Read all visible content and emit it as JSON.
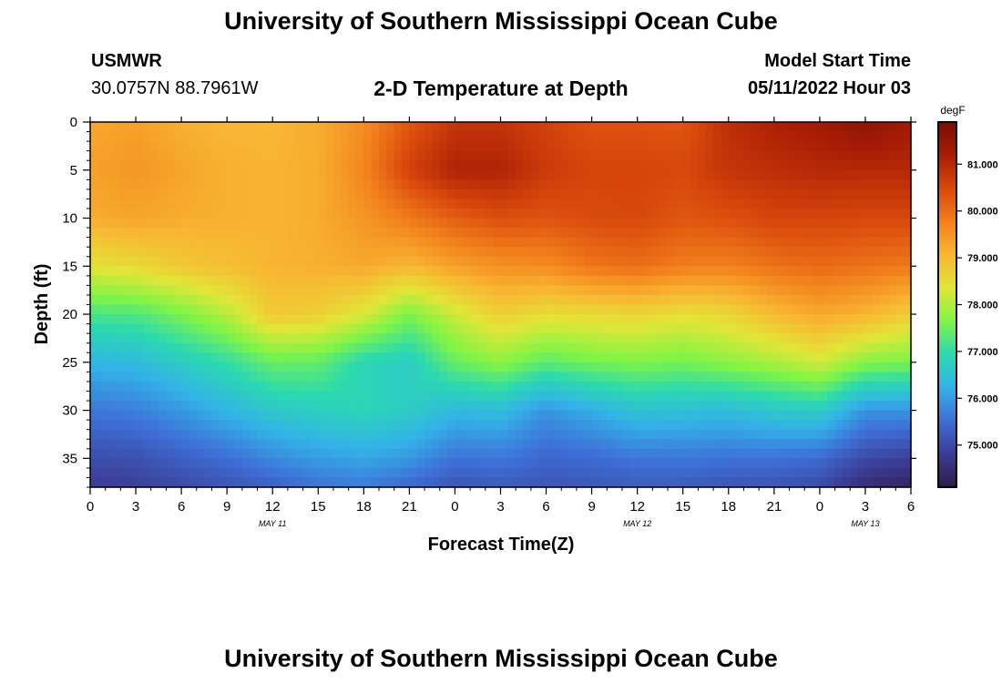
{
  "page": {
    "title_top": "University of Southern Mississippi Ocean Cube",
    "title_bottom": "University of Southern Mississippi Ocean Cube"
  },
  "station": {
    "name": "USMWR",
    "coords": "30.0757N  88.7961W"
  },
  "model": {
    "label": "Model Start Time",
    "start": "05/11/2022 Hour 03"
  },
  "chart_data": {
    "type": "heatmap",
    "title": "2-D Temperature at Depth",
    "xlabel": "Forecast Time(Z)",
    "ylabel": "Depth (ft)",
    "units": "degF",
    "xlim": [
      0,
      54
    ],
    "ylim": [
      0,
      38
    ],
    "x_ticks": [
      0,
      3,
      6,
      9,
      12,
      15,
      18,
      21,
      24,
      27,
      30,
      33,
      36,
      39,
      42,
      45,
      48,
      51,
      54
    ],
    "x_tick_labels": [
      "0",
      "3",
      "6",
      "9",
      "12",
      "15",
      "18",
      "21",
      "0",
      "3",
      "6",
      "9",
      "12",
      "15",
      "18",
      "21",
      "0",
      "3",
      "6"
    ],
    "y_ticks": [
      0,
      5,
      10,
      15,
      20,
      25,
      30,
      35
    ],
    "y_tick_labels": [
      "0",
      "5",
      "10",
      "15",
      "20",
      "25",
      "30",
      "35"
    ],
    "date_labels": [
      {
        "x": 12,
        "label": "MAY 11"
      },
      {
        "x": 36,
        "label": "MAY 12"
      },
      {
        "x": 51,
        "label": "MAY 13"
      }
    ],
    "colorbar": {
      "range": [
        74.1,
        81.9
      ],
      "ticks": [
        75,
        76,
        77,
        78,
        79,
        80,
        81
      ],
      "tick_labels": [
        "75.000",
        "76.000",
        "77.000",
        "78.000",
        "79.000",
        "80.000",
        "81.000"
      ],
      "palette": [
        "#2f1b48",
        "#3b3c94",
        "#3e6fd6",
        "#33b2e8",
        "#2bd9b0",
        "#7ff546",
        "#e1e637",
        "#f8b732",
        "#f2801c",
        "#d9480c",
        "#a91d05",
        "#7a0d03"
      ]
    },
    "time_keys": [
      0,
      3,
      6,
      9,
      12,
      15,
      18,
      21,
      24,
      27,
      30,
      33,
      36,
      39,
      42,
      45,
      48,
      51,
      54
    ],
    "depth_keys": [
      0,
      5,
      10,
      15,
      20,
      25,
      30,
      35,
      38
    ],
    "temperature_grid": [
      [
        79.25,
        79.35,
        79.2,
        78.4,
        77.2,
        76.3,
        75.6,
        75.05,
        74.8
      ],
      [
        79.35,
        79.5,
        79.3,
        78.55,
        77.25,
        76.35,
        75.7,
        75.1,
        74.85
      ],
      [
        79.15,
        79.3,
        79.2,
        78.8,
        77.6,
        76.7,
        75.95,
        75.3,
        75.0
      ],
      [
        79.05,
        79.15,
        79.15,
        78.95,
        78.05,
        77.0,
        76.3,
        75.5,
        75.15
      ],
      [
        79.05,
        79.1,
        79.1,
        79.1,
        78.8,
        77.45,
        76.6,
        75.8,
        75.3
      ],
      [
        79.2,
        79.2,
        79.2,
        79.15,
        78.7,
        77.4,
        76.75,
        76.0,
        75.55
      ],
      [
        79.6,
        79.7,
        79.5,
        79.25,
        78.3,
        76.85,
        76.85,
        76.1,
        75.65
      ],
      [
        80.3,
        80.6,
        79.85,
        79.05,
        77.6,
        76.7,
        76.7,
        75.95,
        75.4
      ],
      [
        80.8,
        81.1,
        80.2,
        79.35,
        78.2,
        77.45,
        76.35,
        75.55,
        75.15
      ],
      [
        80.8,
        81.1,
        80.4,
        79.55,
        78.7,
        77.75,
        76.4,
        75.6,
        75.25
      ],
      [
        80.6,
        80.7,
        80.35,
        79.6,
        78.5,
        77.35,
        75.9,
        75.4,
        75.15
      ],
      [
        80.35,
        80.55,
        80.45,
        79.9,
        78.55,
        77.55,
        76.2,
        75.45,
        75.2
      ],
      [
        80.35,
        80.55,
        80.5,
        80.0,
        78.6,
        77.65,
        76.5,
        75.6,
        75.25
      ],
      [
        80.3,
        80.5,
        80.3,
        79.8,
        78.45,
        77.55,
        76.45,
        75.6,
        75.25
      ],
      [
        80.9,
        80.8,
        80.4,
        79.75,
        78.6,
        77.75,
        76.4,
        75.55,
        75.15
      ],
      [
        81.15,
        80.9,
        80.55,
        79.95,
        79.0,
        77.95,
        76.6,
        75.55,
        75.15
      ],
      [
        81.3,
        81.0,
        80.55,
        80.05,
        79.25,
        78.25,
        76.7,
        75.45,
        75.0
      ],
      [
        81.6,
        81.0,
        80.5,
        79.95,
        79.1,
        77.7,
        75.9,
        75.0,
        74.5
      ],
      [
        81.3,
        81.0,
        80.5,
        79.85,
        78.7,
        77.6,
        75.9,
        74.85,
        74.3
      ]
    ]
  }
}
